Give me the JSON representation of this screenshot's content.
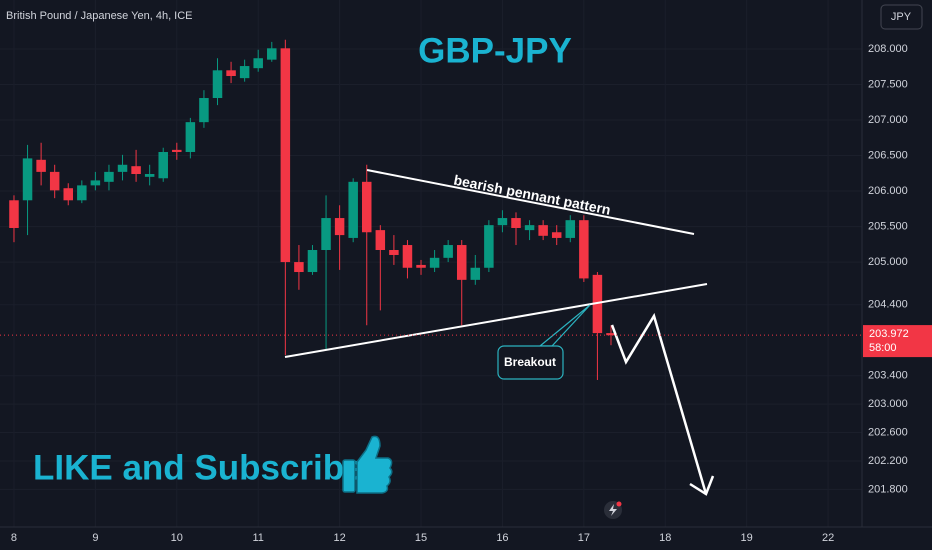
{
  "chart_data": {
    "type": "candlestick",
    "symbol": "British Pound / Japanese Yen, 4h, ICE",
    "title": "GBP-JPY",
    "currency_button": "JPY",
    "annotations": {
      "pattern": "bearish pennant pattern",
      "breakout": "Breakout",
      "cta": "LIKE and Subscribe"
    },
    "current_price": 203.972,
    "countdown": "58:00",
    "up_color": "#089981",
    "down_color": "#f23645",
    "grid": true,
    "series": {
      "open": [
        205.87,
        205.87,
        206.44,
        206.27,
        206.04,
        205.87,
        206.08,
        206.13,
        206.27,
        206.35,
        206.2,
        206.18,
        206.58,
        206.55,
        206.97,
        207.31,
        207.7,
        207.59,
        207.73,
        207.85,
        208.01,
        205.0,
        204.86,
        205.17,
        205.62,
        205.34,
        206.13,
        205.45,
        205.17,
        205.24,
        204.96,
        204.92,
        205.06,
        205.24,
        204.75,
        204.92,
        205.52,
        205.62,
        205.45,
        205.52,
        205.42,
        205.34,
        205.59,
        204.82,
        204.0
      ],
      "high": [
        205.94,
        206.65,
        206.68,
        206.37,
        206.11,
        206.15,
        206.27,
        206.37,
        206.51,
        206.58,
        206.37,
        206.61,
        206.68,
        207.03,
        207.42,
        207.87,
        207.82,
        207.85,
        207.99,
        208.1,
        208.13,
        205.24,
        205.24,
        205.94,
        205.8,
        206.18,
        206.37,
        205.52,
        205.38,
        205.31,
        205.03,
        205.17,
        205.31,
        205.31,
        205.1,
        205.59,
        205.73,
        205.7,
        205.59,
        205.59,
        205.52,
        205.66,
        205.66,
        204.86,
        204.11
      ],
      "low": [
        205.28,
        205.38,
        206.08,
        205.9,
        205.8,
        205.83,
        206.01,
        206.01,
        206.15,
        206.13,
        206.08,
        206.13,
        206.44,
        206.46,
        206.89,
        207.21,
        207.52,
        207.54,
        207.68,
        207.82,
        203.69,
        204.61,
        204.82,
        203.76,
        204.89,
        205.28,
        204.11,
        204.32,
        204.96,
        204.77,
        204.82,
        204.86,
        205.0,
        204.11,
        204.68,
        204.86,
        205.42,
        205.24,
        205.31,
        205.31,
        205.24,
        205.28,
        204.72,
        203.34,
        203.83
      ],
      "close": [
        205.48,
        206.46,
        206.27,
        206.01,
        205.87,
        206.08,
        206.15,
        206.27,
        206.37,
        206.24,
        206.24,
        206.55,
        206.55,
        206.97,
        207.31,
        207.7,
        207.62,
        207.76,
        207.87,
        208.01,
        205.0,
        204.86,
        205.17,
        205.62,
        205.38,
        206.13,
        205.42,
        205.17,
        205.1,
        204.92,
        204.92,
        205.06,
        205.24,
        204.75,
        204.92,
        205.52,
        205.62,
        205.48,
        205.52,
        205.37,
        205.34,
        205.59,
        204.77,
        204.0,
        203.97
      ]
    },
    "ylim": [
      201.27,
      208.69
    ],
    "yticks": [
      {
        "value": 208,
        "label": "208.000"
      },
      {
        "value": 207.5,
        "label": "207.500"
      },
      {
        "value": 207,
        "label": "207.000"
      },
      {
        "value": 206.5,
        "label": "206.500"
      },
      {
        "value": 206,
        "label": "206.000"
      },
      {
        "value": 205.5,
        "label": "205.500"
      },
      {
        "value": 205,
        "label": "205.000"
      },
      {
        "value": 204.4,
        "label": "204.400"
      },
      {
        "value": 203.4,
        "label": "203.400"
      },
      {
        "value": 203,
        "label": "203.000"
      },
      {
        "value": 202.6,
        "label": "202.600"
      },
      {
        "value": 202.2,
        "label": "202.200"
      },
      {
        "value": 201.8,
        "label": "201.800"
      }
    ],
    "xlim": [
      -1.03,
      62.5
    ],
    "xticks": [
      {
        "value": 0,
        "label": "8"
      },
      {
        "value": 6,
        "label": "9"
      },
      {
        "value": 12,
        "label": "10"
      },
      {
        "value": 18,
        "label": "11"
      },
      {
        "value": 24,
        "label": "12"
      },
      {
        "value": 30,
        "label": "15"
      },
      {
        "value": 36,
        "label": "16"
      },
      {
        "value": 42,
        "label": "17"
      },
      {
        "value": 48,
        "label": "18"
      },
      {
        "value": 54,
        "label": "19"
      },
      {
        "value": 60,
        "label": "22"
      }
    ]
  }
}
